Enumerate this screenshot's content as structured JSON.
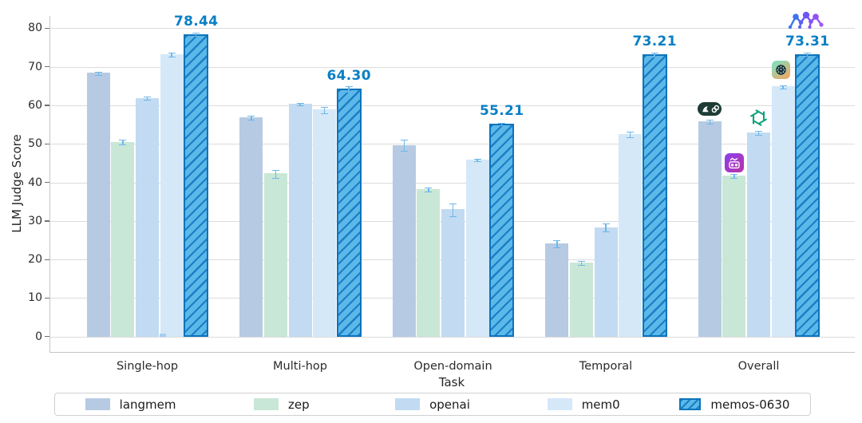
{
  "chart_data": {
    "type": "bar",
    "title": "",
    "xlabel": "Task",
    "ylabel": "LLM Judge Score",
    "ylim": [
      0,
      83
    ],
    "yticks": [
      0,
      10,
      20,
      30,
      40,
      50,
      60,
      70,
      80
    ],
    "grid": "horizontal",
    "categories": [
      "Single-hop",
      "Multi-hop",
      "Open-domain",
      "Temporal",
      "Overall"
    ],
    "series": [
      {
        "name": "langmem",
        "color": "#b6cbe3",
        "values": [
          68.4,
          56.8,
          49.7,
          24.2,
          55.9
        ],
        "errors": [
          0.3,
          0.4,
          1.4,
          0.8,
          0.4
        ]
      },
      {
        "name": "zep",
        "color": "#c9e7d6",
        "values": [
          50.5,
          42.3,
          38.3,
          19.2,
          41.8
        ],
        "errors": [
          0.5,
          1.0,
          0.4,
          0.4,
          0.4
        ]
      },
      {
        "name": "openai",
        "color": "#c2dbf2",
        "values": [
          61.9,
          60.4,
          33.0,
          28.4,
          52.9
        ],
        "errors": [
          0.3,
          0.3,
          1.5,
          0.9,
          0.4
        ]
      },
      {
        "name": "mem0",
        "color": "#d5e8f8",
        "values": [
          73.3,
          58.9,
          45.9,
          52.5,
          64.9
        ],
        "errors": [
          0.4,
          0.7,
          0.3,
          0.6,
          0.3
        ]
      },
      {
        "name": "memos-0630",
        "color": "#5bb8e8",
        "hatched": true,
        "values": [
          78.44,
          64.3,
          55.21,
          73.21,
          73.31
        ],
        "errors": [
          0.3,
          0.6,
          0.3,
          0.4,
          0.3
        ],
        "bar_labels": [
          "78.44",
          "64.30",
          "55.21",
          "73.21",
          "73.31"
        ]
      }
    ],
    "annotation_color": "#0a7fc4",
    "error_bar_color": "#6db7ea",
    "hatch_border_color": "#0c74bc",
    "legend": {
      "position": "bottom",
      "items": [
        "langmem",
        "zep",
        "openai",
        "mem0",
        "memos-0630"
      ]
    },
    "overall_marker_icons": [
      "langmem-icon",
      "zep-icon",
      "openai-icon",
      "mem0-icon",
      "memos-logo-icon"
    ]
  }
}
